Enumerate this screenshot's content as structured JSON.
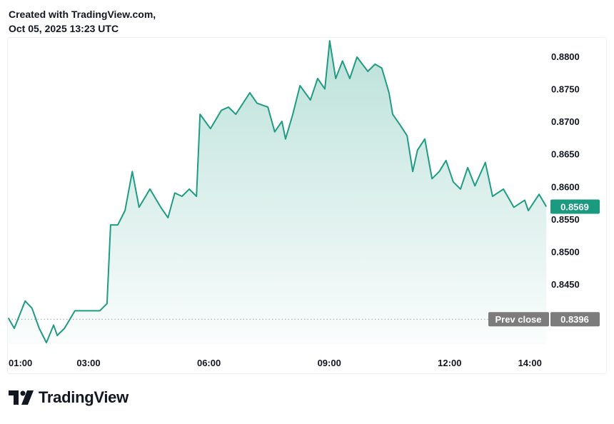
{
  "header": {
    "line1": "Created with TradingView.com,",
    "line2": "Oct 05, 2025 13:23 UTC"
  },
  "brand": {
    "name": "TradingView",
    "icon": "tradingview-logo-icon"
  },
  "colors": {
    "line": "#1f9c83",
    "last_badge": "#1a9a7e",
    "prev_badge": "#7c7c7c"
  },
  "chart_data": {
    "type": "area",
    "title": "",
    "xlabel": "",
    "ylabel": "",
    "x_unit": "hour (UTC)",
    "xlim": [
      1.0,
      14.41
    ],
    "ylim": [
      0.8355,
      0.883
    ],
    "x_ticks": [
      {
        "h": 1,
        "label": "01:00"
      },
      {
        "h": 3,
        "label": "03:00"
      },
      {
        "h": 6,
        "label": "06:00"
      },
      {
        "h": 9,
        "label": "09:00"
      },
      {
        "h": 12,
        "label": "12:00"
      },
      {
        "h": 14,
        "label": "14:00"
      }
    ],
    "y_ticks": [
      {
        "v": 0.88,
        "label": "0.8800"
      },
      {
        "v": 0.875,
        "label": "0.8750"
      },
      {
        "v": 0.87,
        "label": "0.8700"
      },
      {
        "v": 0.865,
        "label": "0.8650"
      },
      {
        "v": 0.86,
        "label": "0.8600"
      },
      {
        "v": 0.855,
        "label": "0.8550"
      },
      {
        "v": 0.85,
        "label": "0.8500"
      },
      {
        "v": 0.845,
        "label": "0.8450"
      }
    ],
    "last_value": {
      "v": 0.8569,
      "label": "0.8569"
    },
    "prev_close": {
      "v": 0.8396,
      "label": "Prev close",
      "value_label": "0.8396"
    },
    "grid": false,
    "series": [
      {
        "name": "price",
        "points": [
          [
            1.0,
            0.8398
          ],
          [
            1.15,
            0.8382
          ],
          [
            1.42,
            0.8424
          ],
          [
            1.59,
            0.8413
          ],
          [
            1.77,
            0.8382
          ],
          [
            1.95,
            0.836
          ],
          [
            2.13,
            0.8387
          ],
          [
            2.22,
            0.8371
          ],
          [
            2.4,
            0.8382
          ],
          [
            2.66,
            0.8409
          ],
          [
            2.93,
            0.8409
          ],
          [
            3.28,
            0.8409
          ],
          [
            3.46,
            0.842
          ],
          [
            3.55,
            0.8541
          ],
          [
            3.73,
            0.8541
          ],
          [
            3.91,
            0.8563
          ],
          [
            4.09,
            0.8623
          ],
          [
            4.26,
            0.8568
          ],
          [
            4.53,
            0.8596
          ],
          [
            4.8,
            0.8568
          ],
          [
            4.98,
            0.8552
          ],
          [
            5.15,
            0.859
          ],
          [
            5.33,
            0.8585
          ],
          [
            5.51,
            0.8596
          ],
          [
            5.69,
            0.8585
          ],
          [
            5.78,
            0.8711
          ],
          [
            6.04,
            0.8689
          ],
          [
            6.31,
            0.8717
          ],
          [
            6.49,
            0.8722
          ],
          [
            6.67,
            0.8711
          ],
          [
            7.02,
            0.8744
          ],
          [
            7.2,
            0.8728
          ],
          [
            7.47,
            0.8722
          ],
          [
            7.64,
            0.8684
          ],
          [
            7.82,
            0.87
          ],
          [
            7.91,
            0.8673
          ],
          [
            8.09,
            0.8711
          ],
          [
            8.27,
            0.8755
          ],
          [
            8.53,
            0.8733
          ],
          [
            8.71,
            0.8766
          ],
          [
            8.89,
            0.875
          ],
          [
            9.01,
            0.8824
          ],
          [
            9.16,
            0.8766
          ],
          [
            9.33,
            0.8793
          ],
          [
            9.51,
            0.8766
          ],
          [
            9.69,
            0.8799
          ],
          [
            9.96,
            0.8777
          ],
          [
            10.14,
            0.8788
          ],
          [
            10.31,
            0.8782
          ],
          [
            10.49,
            0.8744
          ],
          [
            10.58,
            0.8711
          ],
          [
            10.76,
            0.8695
          ],
          [
            10.94,
            0.8678
          ],
          [
            11.08,
            0.8623
          ],
          [
            11.2,
            0.8656
          ],
          [
            11.38,
            0.8673
          ],
          [
            11.56,
            0.8612
          ],
          [
            11.74,
            0.8623
          ],
          [
            11.91,
            0.864
          ],
          [
            12.09,
            0.8607
          ],
          [
            12.27,
            0.8596
          ],
          [
            12.45,
            0.8629
          ],
          [
            12.63,
            0.8601
          ],
          [
            12.89,
            0.8637
          ],
          [
            13.07,
            0.8585
          ],
          [
            13.34,
            0.8596
          ],
          [
            13.6,
            0.8568
          ],
          [
            13.87,
            0.8579
          ],
          [
            13.96,
            0.8563
          ],
          [
            14.23,
            0.8588
          ],
          [
            14.41,
            0.8569
          ]
        ]
      }
    ]
  }
}
